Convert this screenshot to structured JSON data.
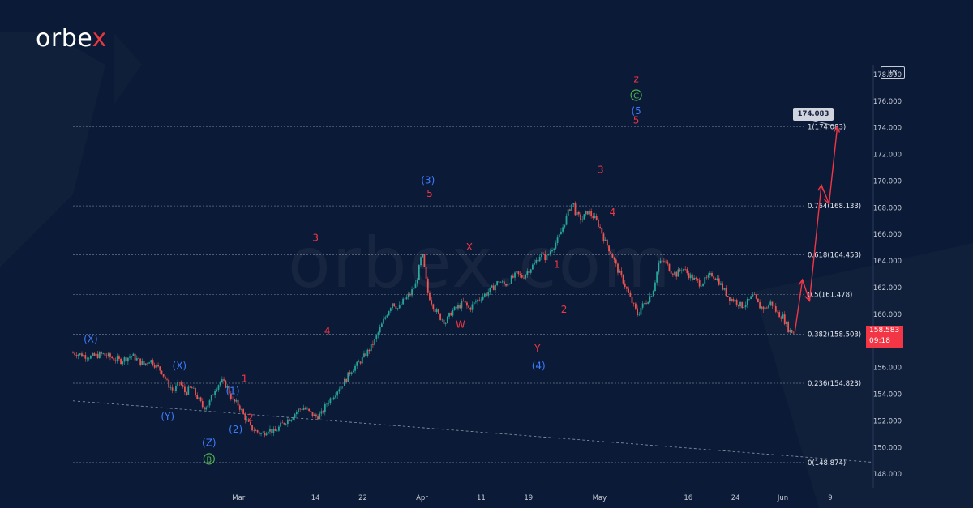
{
  "brand": {
    "logo_main": "orbe",
    "logo_accent": "x",
    "watermark": "orbex.com"
  },
  "colors": {
    "background": "#0b1a36",
    "up_candle": "#26a69a",
    "down_candle": "#ef5350",
    "projection": "#f23645",
    "wave_blue": "#3d7cff",
    "wave_red": "#f23645",
    "wave_green": "#4caf50",
    "fib_line": "#7f8aa3",
    "axis_text": "#c7ccd6"
  },
  "chart_data": {
    "type": "candlestick",
    "currency": "JPY",
    "current_price": "158.583",
    "countdown": "09:18",
    "target_label": "174.083",
    "x_axis": {
      "range": [
        0,
        135
      ],
      "ticks": [
        {
          "day": 28,
          "label": "Mar"
        },
        {
          "day": 41,
          "label": "14"
        },
        {
          "day": 49,
          "label": "22"
        },
        {
          "day": 59,
          "label": "Apr"
        },
        {
          "day": 69,
          "label": "11"
        },
        {
          "day": 77,
          "label": "19"
        },
        {
          "day": 89,
          "label": "May"
        },
        {
          "day": 104,
          "label": "16"
        },
        {
          "day": 112,
          "label": "24"
        },
        {
          "day": 120,
          "label": "Jun"
        },
        {
          "day": 128,
          "label": "9"
        }
      ]
    },
    "y_axis": {
      "range": [
        147.1,
        178.6
      ],
      "ticks": [
        "148.000",
        "150.000",
        "152.000",
        "154.000",
        "156.000",
        "158.000",
        "160.000",
        "162.000",
        "164.000",
        "166.000",
        "168.000",
        "170.000",
        "172.000",
        "174.000",
        "176.000",
        "178.000"
      ]
    },
    "fib_levels": [
      {
        "value": 174.083,
        "label": "1(174.083)"
      },
      {
        "value": 168.133,
        "label": "0.764(168.133)"
      },
      {
        "value": 164.453,
        "label": "0.618(164.453)"
      },
      {
        "value": 161.478,
        "label": "0.5(161.478)"
      },
      {
        "value": 158.503,
        "label": "0.382(158.503)"
      },
      {
        "value": 154.823,
        "label": "0.236(154.823)"
      },
      {
        "value": 148.874,
        "label": "0(148.874)"
      }
    ],
    "price_path": [
      [
        0,
        157.1
      ],
      [
        3,
        156.8
      ],
      [
        5,
        157.0
      ],
      [
        8,
        156.5
      ],
      [
        10,
        156.9
      ],
      [
        12,
        156.2
      ],
      [
        13,
        156.6
      ],
      [
        15,
        155.7
      ],
      [
        16,
        154.8
      ],
      [
        17,
        154.2
      ],
      [
        18,
        154.9
      ],
      [
        19,
        154.1
      ],
      [
        20,
        154.5
      ],
      [
        21,
        153.8
      ],
      [
        22,
        153.0
      ],
      [
        23,
        153.3
      ],
      [
        24,
        154.4
      ],
      [
        25,
        155.0
      ],
      [
        26,
        154.6
      ],
      [
        27,
        153.5
      ],
      [
        28,
        153.2
      ],
      [
        29,
        152.3
      ],
      [
        30,
        151.5
      ],
      [
        31,
        151.2
      ],
      [
        32,
        151.0
      ],
      [
        33,
        151.4
      ],
      [
        34,
        151.1
      ],
      [
        35,
        151.6
      ],
      [
        36,
        152.0
      ],
      [
        37,
        152.3
      ],
      [
        38,
        152.8
      ],
      [
        39,
        153.0
      ],
      [
        40,
        152.6
      ],
      [
        41,
        152.3
      ],
      [
        42,
        152.5
      ],
      [
        43,
        153.4
      ],
      [
        44,
        153.9
      ],
      [
        45,
        154.5
      ],
      [
        46,
        155.0
      ],
      [
        47,
        155.8
      ],
      [
        48,
        156.2
      ],
      [
        49,
        156.7
      ],
      [
        50,
        157.3
      ],
      [
        51,
        158.0
      ],
      [
        52,
        159.0
      ],
      [
        53,
        160.0
      ],
      [
        54,
        160.9
      ],
      [
        55,
        160.4
      ],
      [
        56,
        161.1
      ],
      [
        57,
        161.5
      ],
      [
        58,
        162.3
      ],
      [
        59,
        164.6
      ],
      [
        60,
        161.6
      ],
      [
        61,
        160.5
      ],
      [
        62,
        159.8
      ],
      [
        63,
        159.4
      ],
      [
        64,
        160.2
      ],
      [
        65,
        160.5
      ],
      [
        66,
        160.9
      ],
      [
        67,
        160.4
      ],
      [
        68,
        160.9
      ],
      [
        69,
        161.3
      ],
      [
        70,
        161.6
      ],
      [
        71,
        162.0
      ],
      [
        72,
        162.5
      ],
      [
        73,
        162.2
      ],
      [
        74,
        162.6
      ],
      [
        75,
        163.0
      ],
      [
        76,
        162.8
      ],
      [
        77,
        163.3
      ],
      [
        78,
        163.8
      ],
      [
        79,
        164.5
      ],
      [
        80,
        164.2
      ],
      [
        81,
        165.0
      ],
      [
        82,
        165.6
      ],
      [
        83,
        166.8
      ],
      [
        84,
        168.0
      ],
      [
        84.5,
        168.4
      ],
      [
        85,
        167.5
      ],
      [
        86,
        167.1
      ],
      [
        87,
        167.7
      ],
      [
        88,
        167.3
      ],
      [
        89,
        166.6
      ],
      [
        90,
        165.4
      ],
      [
        91,
        164.6
      ],
      [
        92,
        163.4
      ],
      [
        93,
        162.5
      ],
      [
        94,
        161.4
      ],
      [
        95,
        160.4
      ],
      [
        95.5,
        159.9
      ],
      [
        96,
        160.5
      ],
      [
        97,
        161.0
      ],
      [
        98,
        161.7
      ],
      [
        99,
        163.8
      ],
      [
        100,
        164.0
      ],
      [
        101,
        163.3
      ],
      [
        102,
        163.0
      ],
      [
        103,
        163.5
      ],
      [
        104,
        163.0
      ],
      [
        105,
        162.6
      ],
      [
        106,
        162.3
      ],
      [
        107,
        162.6
      ],
      [
        108,
        163.0
      ],
      [
        109,
        162.6
      ],
      [
        110,
        161.8
      ],
      [
        111,
        161.2
      ],
      [
        112,
        161.0
      ],
      [
        113,
        160.6
      ],
      [
        114,
        160.9
      ],
      [
        115,
        161.4
      ],
      [
        116,
        160.6
      ],
      [
        117,
        160.4
      ],
      [
        118,
        160.9
      ],
      [
        119,
        160.1
      ],
      [
        120,
        159.8
      ],
      [
        121,
        158.8
      ],
      [
        122,
        158.6
      ]
    ],
    "projection": [
      [
        122,
        158.6
      ],
      [
        123.3,
        162.6
      ],
      [
        124.5,
        161.0
      ],
      [
        126.5,
        169.7
      ],
      [
        127.8,
        168.3
      ],
      [
        129.2,
        174.1
      ]
    ],
    "trendline": {
      "start": [
        0,
        153.5
      ],
      "end": [
        135,
        148.9
      ]
    },
    "wave_labels": [
      {
        "text": "(X)",
        "day": 3,
        "price": 157.9,
        "color": "blue"
      },
      {
        "text": "(Y)",
        "day": 16,
        "price": 152.1,
        "color": "blue"
      },
      {
        "text": "(X)",
        "day": 18,
        "price": 155.9,
        "color": "blue"
      },
      {
        "text": "(Z)",
        "day": 23,
        "price": 150.1,
        "color": "blue"
      },
      {
        "text": "B",
        "day": 23,
        "price": 148.9,
        "color": "green",
        "circle": true
      },
      {
        "text": "(1)",
        "day": 27,
        "price": 154.0,
        "color": "blue"
      },
      {
        "text": "1",
        "day": 29,
        "price": 154.9,
        "color": "red"
      },
      {
        "text": "(2)",
        "day": 27.5,
        "price": 151.1,
        "color": "blue"
      },
      {
        "text": "2",
        "day": 30,
        "price": 152.0,
        "color": "red"
      },
      {
        "text": "3",
        "day": 41,
        "price": 165.5,
        "color": "red"
      },
      {
        "text": "4",
        "day": 43,
        "price": 158.5,
        "color": "red"
      },
      {
        "text": "(3)",
        "day": 60,
        "price": 169.8,
        "color": "blue"
      },
      {
        "text": "5",
        "day": 60.3,
        "price": 168.8,
        "color": "red"
      },
      {
        "text": "X",
        "day": 67,
        "price": 164.8,
        "color": "red"
      },
      {
        "text": "W",
        "day": 65.5,
        "price": 159.0,
        "color": "red"
      },
      {
        "text": "Y",
        "day": 78.5,
        "price": 157.2,
        "color": "red"
      },
      {
        "text": "(4)",
        "day": 78.7,
        "price": 155.9,
        "color": "blue"
      },
      {
        "text": "1",
        "day": 81.8,
        "price": 163.5,
        "color": "red"
      },
      {
        "text": "2",
        "day": 83,
        "price": 160.1,
        "color": "red"
      },
      {
        "text": "3",
        "day": 89.2,
        "price": 170.6,
        "color": "red"
      },
      {
        "text": "4",
        "day": 91.2,
        "price": 167.4,
        "color": "red"
      },
      {
        "text": "z",
        "day": 95.2,
        "price": 177.4,
        "color": "red"
      },
      {
        "text": "C",
        "day": 95.2,
        "price": 176.2,
        "color": "green",
        "circle": true
      },
      {
        "text": "(5",
        "day": 95.2,
        "price": 175.0,
        "color": "blue"
      },
      {
        "text": "5",
        "day": 95.2,
        "price": 174.3,
        "color": "red"
      }
    ]
  }
}
